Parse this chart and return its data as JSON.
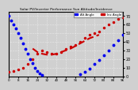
{
  "title": "Solar PV/Inverter Performance Sun Altitude/Incidence",
  "legend_labels": [
    "Alt Angle",
    "Inc Angle"
  ],
  "legend_colors": [
    "#0000ee",
    "#cc0000"
  ],
  "bg_color": "#d0d0d0",
  "plot_bg": "#d0d0d0",
  "grid_color": "#ffffff",
  "ymin": 0,
  "ymax": 75,
  "yticks": [
    0,
    10,
    20,
    30,
    40,
    50,
    60,
    70
  ],
  "xmin": 0,
  "xmax": 96,
  "xticks": [
    0,
    8,
    16,
    24,
    32,
    40,
    48,
    56,
    64,
    72,
    80,
    88,
    96
  ],
  "xlabels": [
    "0",
    "8",
    "16",
    "24",
    "32",
    "40",
    "48",
    "56",
    "64",
    "72",
    "80",
    "88",
    "96"
  ],
  "alt_x": [
    0,
    2,
    4,
    6,
    8,
    10,
    12,
    14,
    16,
    18,
    20,
    22,
    24,
    26,
    28,
    30,
    32,
    34,
    36,
    38,
    40,
    44,
    48,
    52,
    56,
    60,
    64,
    68,
    72,
    76,
    80,
    84,
    88,
    92,
    96
  ],
  "alt_y": [
    70,
    65,
    60,
    55,
    50,
    44,
    38,
    32,
    26,
    20,
    15,
    10,
    6,
    3,
    1,
    0,
    0,
    0,
    0,
    0,
    0,
    0,
    0,
    0,
    0,
    2,
    5,
    9,
    14,
    19,
    24,
    30,
    36,
    42,
    48
  ],
  "inc_x_dash": [
    20,
    24,
    28,
    32,
    36,
    40,
    44,
    48,
    52,
    56,
    60,
    64,
    68,
    72,
    76
  ],
  "inc_y_dash": [
    32,
    28,
    26,
    25,
    25,
    26,
    28,
    30,
    32,
    35,
    38,
    41,
    44,
    46,
    48
  ],
  "inc_x_dots": [
    0,
    4,
    8,
    12,
    16,
    20,
    24,
    28,
    32,
    36,
    40,
    44,
    48,
    52,
    56,
    60,
    64,
    68,
    72,
    76,
    80,
    84,
    88,
    92,
    96
  ],
  "inc_y_dots": [
    5,
    6,
    8,
    10,
    14,
    20,
    26,
    30,
    28,
    26,
    26,
    28,
    32,
    34,
    36,
    40,
    44,
    48,
    50,
    52,
    56,
    60,
    63,
    66,
    68
  ]
}
